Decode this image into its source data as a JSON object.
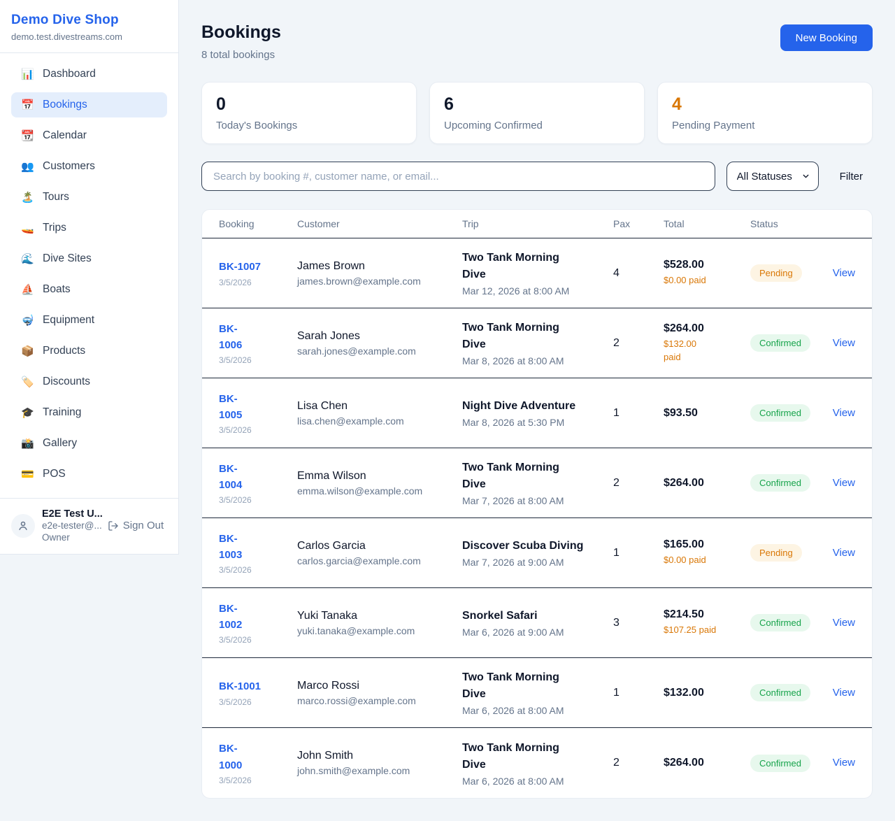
{
  "sidebar": {
    "shop_name": "Demo Dive Shop",
    "domain": "demo.test.divestreams.com",
    "nav": [
      {
        "icon": "📊",
        "label": "Dashboard",
        "key": "dashboard",
        "active": false
      },
      {
        "icon": "📅",
        "label": "Bookings",
        "key": "bookings",
        "active": true
      },
      {
        "icon": "📆",
        "label": "Calendar",
        "key": "calendar",
        "active": false
      },
      {
        "icon": "👥",
        "label": "Customers",
        "key": "customers",
        "active": false
      },
      {
        "icon": "🏝️",
        "label": "Tours",
        "key": "tours",
        "active": false
      },
      {
        "icon": "🚤",
        "label": "Trips",
        "key": "trips",
        "active": false
      },
      {
        "icon": "🌊",
        "label": "Dive Sites",
        "key": "dive-sites",
        "active": false
      },
      {
        "icon": "⛵",
        "label": "Boats",
        "key": "boats",
        "active": false
      },
      {
        "icon": "🤿",
        "label": "Equipment",
        "key": "equipment",
        "active": false
      },
      {
        "icon": "📦",
        "label": "Products",
        "key": "products",
        "active": false
      },
      {
        "icon": "🏷️",
        "label": "Discounts",
        "key": "discounts",
        "active": false
      },
      {
        "icon": "🎓",
        "label": "Training",
        "key": "training",
        "active": false
      },
      {
        "icon": "📸",
        "label": "Gallery",
        "key": "gallery",
        "active": false
      },
      {
        "icon": "💳",
        "label": "POS",
        "key": "pos",
        "active": false
      }
    ],
    "user": {
      "name": "E2E Test U...",
      "email": "e2e-tester@...",
      "role": "Owner",
      "sign_out_label": "Sign Out"
    }
  },
  "header": {
    "title": "Bookings",
    "subtitle": "8 total bookings",
    "new_booking_label": "New Booking"
  },
  "stats": [
    {
      "value": "0",
      "label": "Today's Bookings",
      "accent": false
    },
    {
      "value": "6",
      "label": "Upcoming Confirmed",
      "accent": false
    },
    {
      "value": "4",
      "label": "Pending Payment",
      "accent": true
    }
  ],
  "filters": {
    "search_placeholder": "Search by booking #, customer name, or email...",
    "status_selected": "All Statuses",
    "filter_label": "Filter"
  },
  "table": {
    "columns": [
      "Booking",
      "Customer",
      "Trip",
      "Pax",
      "Total",
      "Status"
    ],
    "view_label": "View",
    "rows": [
      {
        "booking_id": "BK-1007",
        "id_wrapped": false,
        "booking_date": "3/5/2026",
        "customer_name": "James Brown",
        "customer_email": "james.brown@example.com",
        "trip_name": "Two Tank Morning Dive",
        "trip_datetime": "Mar 12, 2026 at 8:00 AM",
        "pax": "4",
        "total": "$528.00",
        "paid": "$0.00 paid",
        "paid_wrap": false,
        "status": "Pending"
      },
      {
        "booking_id": "BK-1006",
        "id_wrapped": true,
        "booking_date": "3/5/2026",
        "customer_name": "Sarah Jones",
        "customer_email": "sarah.jones@example.com",
        "trip_name": "Two Tank Morning Dive",
        "trip_datetime": "Mar 8, 2026 at 8:00 AM",
        "pax": "2",
        "total": "$264.00",
        "paid": "$132.00 paid",
        "paid_wrap": true,
        "status": "Confirmed"
      },
      {
        "booking_id": "BK-1005",
        "id_wrapped": true,
        "booking_date": "3/5/2026",
        "customer_name": "Lisa Chen",
        "customer_email": "lisa.chen@example.com",
        "trip_name": "Night Dive Adventure",
        "trip_datetime": "Mar 8, 2026 at 5:30 PM",
        "pax": "1",
        "total": "$93.50",
        "paid": null,
        "paid_wrap": false,
        "status": "Confirmed"
      },
      {
        "booking_id": "BK-1004",
        "id_wrapped": true,
        "booking_date": "3/5/2026",
        "customer_name": "Emma Wilson",
        "customer_email": "emma.wilson@example.com",
        "trip_name": "Two Tank Morning Dive",
        "trip_datetime": "Mar 7, 2026 at 8:00 AM",
        "pax": "2",
        "total": "$264.00",
        "paid": null,
        "paid_wrap": false,
        "status": "Confirmed"
      },
      {
        "booking_id": "BK-1003",
        "id_wrapped": true,
        "booking_date": "3/5/2026",
        "customer_name": "Carlos Garcia",
        "customer_email": "carlos.garcia@example.com",
        "trip_name": "Discover Scuba Diving",
        "trip_datetime": "Mar 7, 2026 at 9:00 AM",
        "pax": "1",
        "total": "$165.00",
        "paid": "$0.00 paid",
        "paid_wrap": false,
        "status": "Pending"
      },
      {
        "booking_id": "BK-1002",
        "id_wrapped": true,
        "booking_date": "3/5/2026",
        "customer_name": "Yuki Tanaka",
        "customer_email": "yuki.tanaka@example.com",
        "trip_name": "Snorkel Safari",
        "trip_datetime": "Mar 6, 2026 at 9:00 AM",
        "pax": "3",
        "total": "$214.50",
        "paid": "$107.25 paid",
        "paid_wrap": false,
        "status": "Confirmed"
      },
      {
        "booking_id": "BK-1001",
        "id_wrapped": false,
        "booking_date": "3/5/2026",
        "customer_name": "Marco Rossi",
        "customer_email": "marco.rossi@example.com",
        "trip_name": "Two Tank Morning Dive",
        "trip_datetime": "Mar 6, 2026 at 8:00 AM",
        "pax": "1",
        "total": "$132.00",
        "paid": null,
        "paid_wrap": false,
        "status": "Confirmed"
      },
      {
        "booking_id": "BK-1000",
        "id_wrapped": true,
        "booking_date": "3/5/2026",
        "customer_name": "John Smith",
        "customer_email": "john.smith@example.com",
        "trip_name": "Two Tank Morning Dive",
        "trip_datetime": "Mar 6, 2026 at 8:00 AM",
        "pax": "2",
        "total": "$264.00",
        "paid": null,
        "paid_wrap": false,
        "status": "Confirmed"
      }
    ]
  },
  "colors": {
    "accent_blue": "#2563EB",
    "pending_text": "#D97706",
    "pending_bg": "#FDF4E3",
    "confirmed_text": "#16A34A",
    "confirmed_bg": "#E7F8ED",
    "paid_orange": "#D97706",
    "page_bg": "#F1F5F9"
  }
}
